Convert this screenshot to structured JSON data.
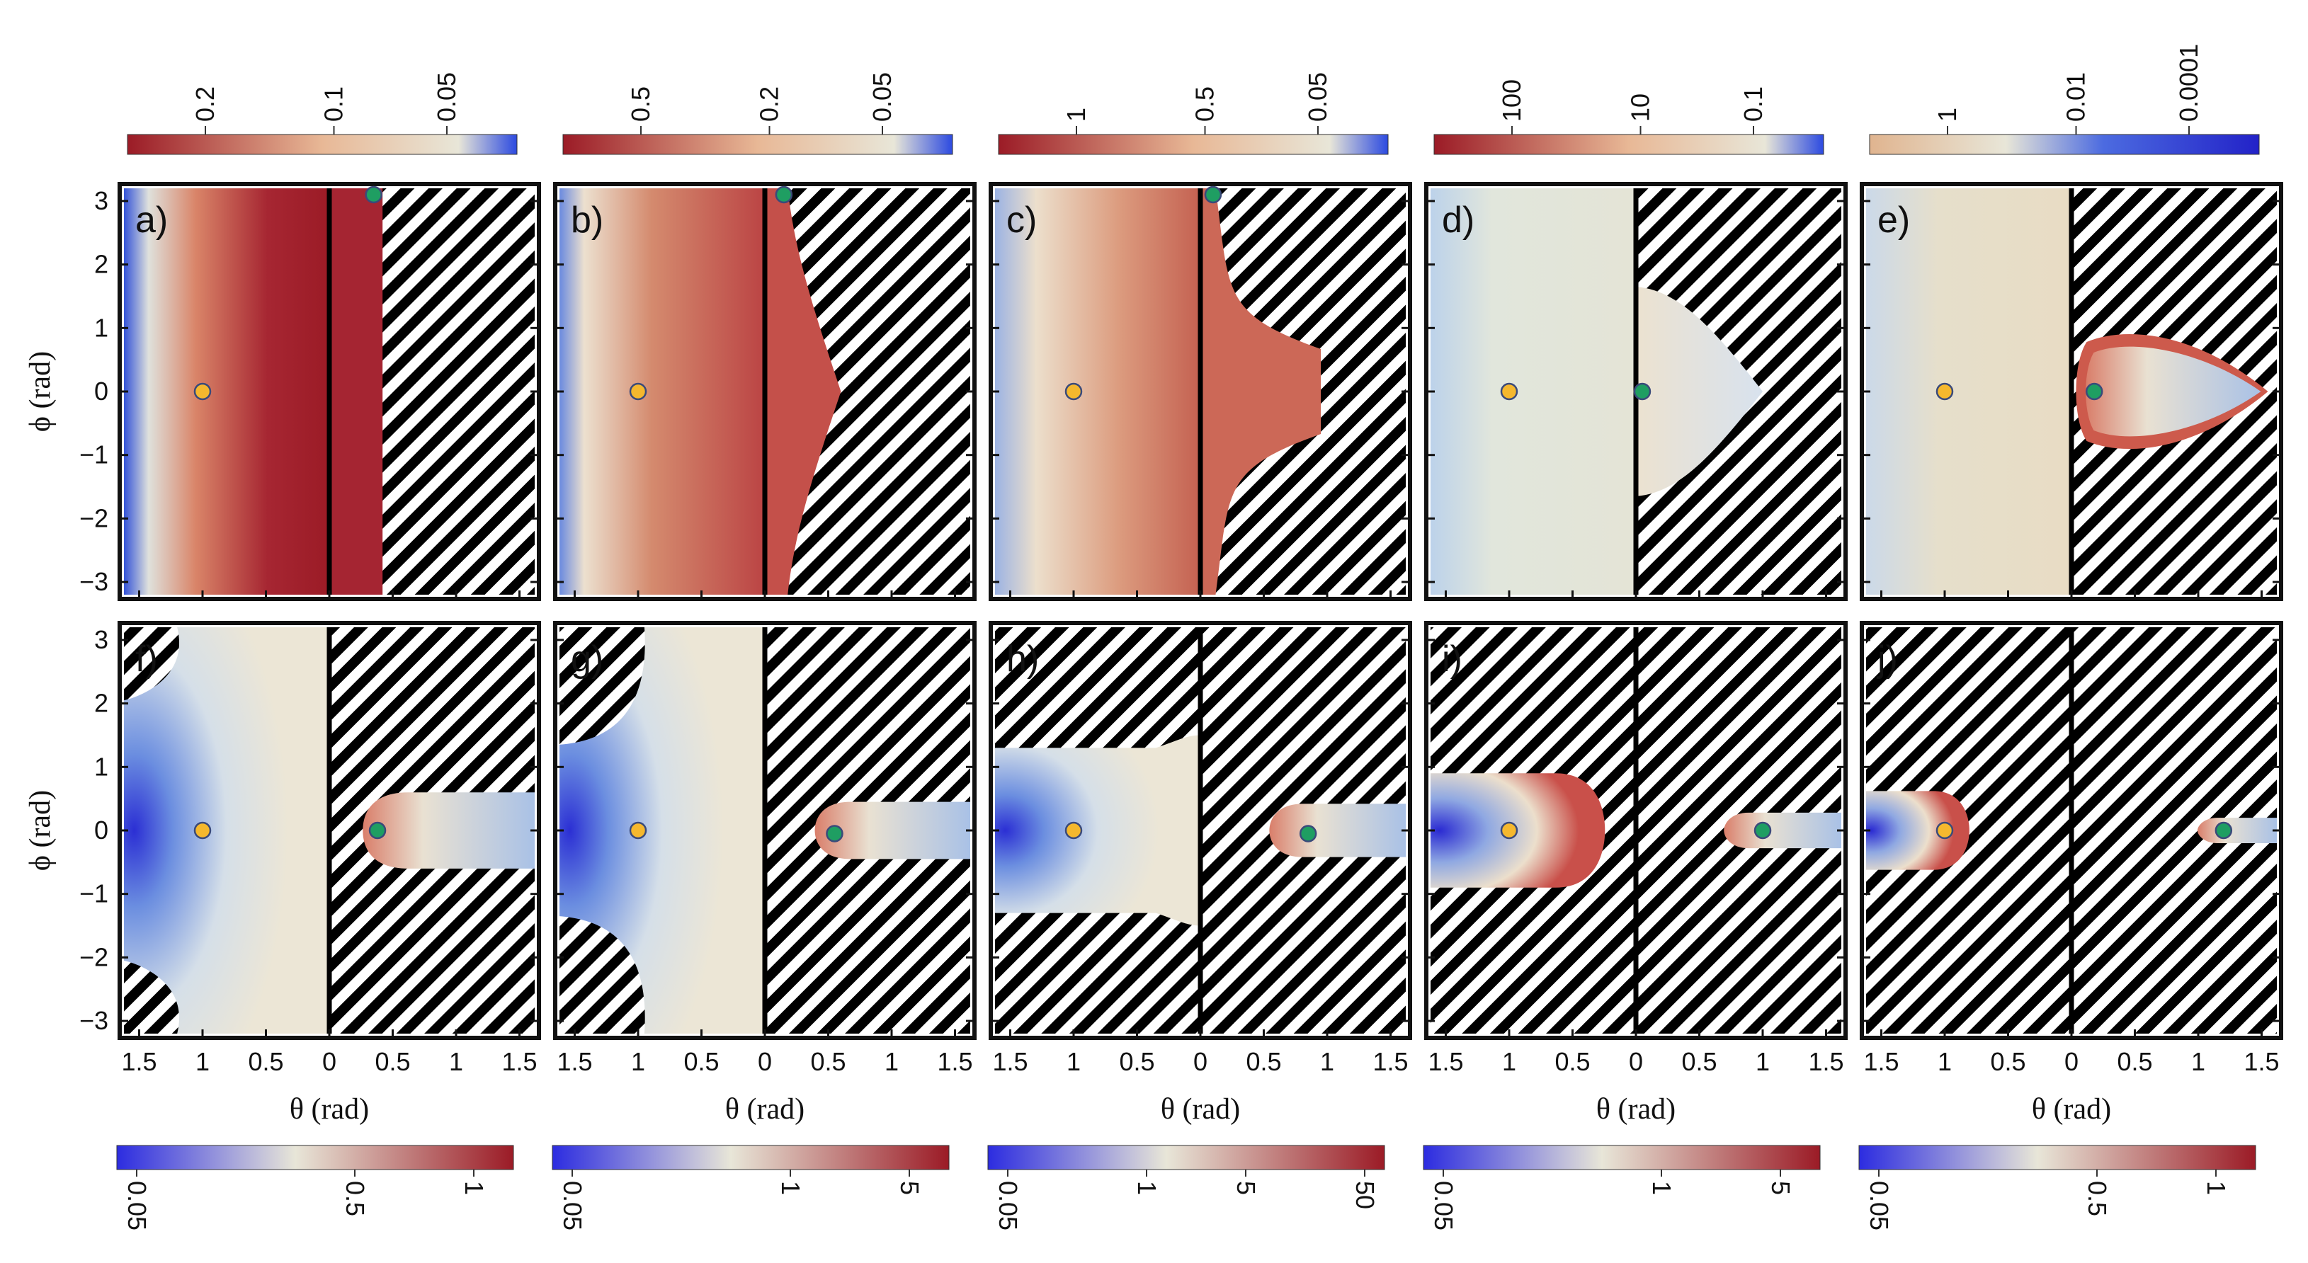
{
  "figure": {
    "y_axis_title": "ϕ (rad)",
    "x_axis_title": "θ (rad)"
  },
  "colors": {
    "blue": "#2c2ce0",
    "pale": "#e8e6d8",
    "red": "#9b1b26",
    "cold_point": "#f5b82e",
    "hot_point": "#1f9e62",
    "boundary": "#000000"
  },
  "chart_data": [
    {
      "panel": "a)",
      "type": "heatmap",
      "region": "top",
      "ylim": [
        -3.2,
        3.2
      ],
      "yticks": [
        3,
        2,
        1,
        0,
        -1,
        -2,
        -3
      ],
      "ytick_labels": [
        "3",
        "2",
        "1",
        "0",
        "−1",
        "−2",
        "−3"
      ],
      "xticks": [],
      "xtick_labels": [],
      "top_colorbar": {
        "labels": [
          "0.2",
          "0.1",
          "0.05"
        ],
        "scale": "reverse",
        "colors": [
          "#9b1b26",
          "#e8e6d8",
          "#2c2ce0"
        ]
      },
      "bottom_colorbar": null,
      "points": [
        {
          "kind": "cold",
          "theta": -1.0,
          "phi": 0.0
        },
        {
          "kind": "hot",
          "theta": 0.35,
          "phi": 3.1
        }
      ]
    },
    {
      "panel": "b)",
      "type": "heatmap",
      "region": "top",
      "ylim": [
        -3.2,
        3.2
      ],
      "yticks": [],
      "ytick_labels": [],
      "xticks": [],
      "xtick_labels": [],
      "top_colorbar": {
        "labels": [
          "0.5",
          "0.2",
          "0.05"
        ],
        "scale": "reverse",
        "colors": [
          "#9b1b26",
          "#e8e6d8",
          "#2c2ce0"
        ]
      },
      "bottom_colorbar": null,
      "points": [
        {
          "kind": "cold",
          "theta": -1.0,
          "phi": 0.0
        },
        {
          "kind": "hot",
          "theta": 0.15,
          "phi": 3.1
        }
      ]
    },
    {
      "panel": "c)",
      "type": "heatmap",
      "region": "top",
      "ylim": [
        -3.2,
        3.2
      ],
      "yticks": [],
      "ytick_labels": [],
      "xticks": [],
      "xtick_labels": [],
      "top_colorbar": {
        "labels": [
          "1",
          "0.5",
          "0.05"
        ],
        "scale": "reverse",
        "colors": [
          "#9b1b26",
          "#e8e6d8",
          "#2c2ce0"
        ]
      },
      "bottom_colorbar": null,
      "points": [
        {
          "kind": "cold",
          "theta": -1.0,
          "phi": 0.0
        },
        {
          "kind": "hot",
          "theta": 0.1,
          "phi": 3.1
        }
      ]
    },
    {
      "panel": "d)",
      "type": "heatmap",
      "region": "top",
      "ylim": [
        -3.2,
        3.2
      ],
      "yticks": [],
      "ytick_labels": [],
      "xticks": [],
      "xtick_labels": [],
      "top_colorbar": {
        "labels": [
          "100",
          "10",
          "0.1"
        ],
        "scale": "reverse",
        "colors": [
          "#9b1b26",
          "#e8e6d8",
          "#2c2ce0"
        ]
      },
      "bottom_colorbar": null,
      "points": [
        {
          "kind": "cold",
          "theta": -1.0,
          "phi": 0.0
        },
        {
          "kind": "hot",
          "theta": 0.05,
          "phi": 0.0
        }
      ]
    },
    {
      "panel": "e)",
      "type": "heatmap",
      "region": "top",
      "ylim": [
        -3.2,
        3.2
      ],
      "yticks": [],
      "ytick_labels": [],
      "xticks": [],
      "xtick_labels": [],
      "top_colorbar": {
        "labels": [
          "1",
          "0.01",
          "0.0001"
        ],
        "scale": "reverse",
        "colors": [
          "#9b1b26",
          "#e8e6d8",
          "#2c2ce0"
        ]
      },
      "bottom_colorbar": null,
      "points": [
        {
          "kind": "cold",
          "theta": -1.0,
          "phi": 0.0
        },
        {
          "kind": "hot",
          "theta": 0.18,
          "phi": 0.0
        }
      ]
    },
    {
      "panel": "f)",
      "type": "heatmap",
      "region": "bottom",
      "ylim": [
        -3.2,
        3.2
      ],
      "yticks": [
        3,
        2,
        1,
        0,
        -1,
        -2,
        -3
      ],
      "ytick_labels": [
        "3",
        "2",
        "1",
        "0",
        "−1",
        "−2",
        "−3"
      ],
      "xticks": [
        -1.5,
        -1,
        -0.5,
        0,
        0.5,
        1,
        1.5
      ],
      "xtick_labels": [
        "1.5",
        "1",
        "0.5",
        "0",
        "0.5",
        "1",
        "1.5"
      ],
      "top_colorbar": null,
      "bottom_colorbar": {
        "labels": [
          "0.05",
          "0.5",
          "1"
        ],
        "colors": [
          "#2c2ce0",
          "#e8e6d8",
          "#9b1b26"
        ]
      },
      "points": [
        {
          "kind": "cold",
          "theta": -1.0,
          "phi": 0.0
        },
        {
          "kind": "hot",
          "theta": 0.38,
          "phi": 0.0
        }
      ]
    },
    {
      "panel": "g)",
      "type": "heatmap",
      "region": "bottom",
      "ylim": [
        -3.2,
        3.2
      ],
      "yticks": [],
      "ytick_labels": [],
      "xticks": [
        -1.5,
        -1,
        -0.5,
        0,
        0.5,
        1,
        1.5
      ],
      "xtick_labels": [
        "1.5",
        "1",
        "0.5",
        "0",
        "0.5",
        "1",
        "1.5"
      ],
      "top_colorbar": null,
      "bottom_colorbar": {
        "labels": [
          "0.05",
          "1",
          "5"
        ],
        "colors": [
          "#2c2ce0",
          "#e8e6d8",
          "#9b1b26"
        ]
      },
      "points": [
        {
          "kind": "cold",
          "theta": -1.0,
          "phi": 0.0
        },
        {
          "kind": "hot",
          "theta": 0.55,
          "phi": -0.05
        }
      ]
    },
    {
      "panel": "h)",
      "type": "heatmap",
      "region": "bottom",
      "ylim": [
        -3.2,
        3.2
      ],
      "yticks": [],
      "ytick_labels": [],
      "xticks": [
        -1.5,
        -1,
        -0.5,
        0,
        0.5,
        1,
        1.5
      ],
      "xtick_labels": [
        "1.5",
        "1",
        "0.5",
        "0",
        "0.5",
        "1",
        "1.5"
      ],
      "top_colorbar": null,
      "bottom_colorbar": {
        "labels": [
          "0.05",
          "1",
          "5",
          "50"
        ],
        "colors": [
          "#2c2ce0",
          "#e8e6d8",
          "#9b1b26"
        ]
      },
      "points": [
        {
          "kind": "cold",
          "theta": -1.0,
          "phi": 0.0
        },
        {
          "kind": "hot",
          "theta": 0.85,
          "phi": -0.05
        }
      ]
    },
    {
      "panel": "i)",
      "type": "heatmap",
      "region": "bottom",
      "ylim": [
        -3.2,
        3.2
      ],
      "yticks": [],
      "ytick_labels": [],
      "xticks": [
        -1.5,
        -1,
        -0.5,
        0,
        0.5,
        1,
        1.5
      ],
      "xtick_labels": [
        "1.5",
        "1",
        "0.5",
        "0",
        "0.5",
        "1",
        "1.5"
      ],
      "top_colorbar": null,
      "bottom_colorbar": {
        "labels": [
          "0.05",
          "1",
          "5"
        ],
        "colors": [
          "#2c2ce0",
          "#e8e6d8",
          "#9b1b26"
        ]
      },
      "points": [
        {
          "kind": "cold",
          "theta": -1.0,
          "phi": 0.0
        },
        {
          "kind": "hot",
          "theta": 1.0,
          "phi": 0.0
        }
      ]
    },
    {
      "panel": "j)",
      "type": "heatmap",
      "region": "bottom",
      "ylim": [
        -3.2,
        3.2
      ],
      "yticks": [],
      "ytick_labels": [],
      "xticks": [
        -1.5,
        -1,
        -0.5,
        0,
        0.5,
        1,
        1.5
      ],
      "xtick_labels": [
        "1.5",
        "1",
        "0.5",
        "0",
        "0.5",
        "1",
        "1.5"
      ],
      "top_colorbar": null,
      "bottom_colorbar": {
        "labels": [
          "0.05",
          "0.5",
          "1"
        ],
        "colors": [
          "#2c2ce0",
          "#e8e6d8",
          "#9b1b26"
        ]
      },
      "points": [
        {
          "kind": "cold",
          "theta": -1.0,
          "phi": 0.0
        },
        {
          "kind": "hot",
          "theta": 1.2,
          "phi": 0.0
        }
      ]
    }
  ]
}
